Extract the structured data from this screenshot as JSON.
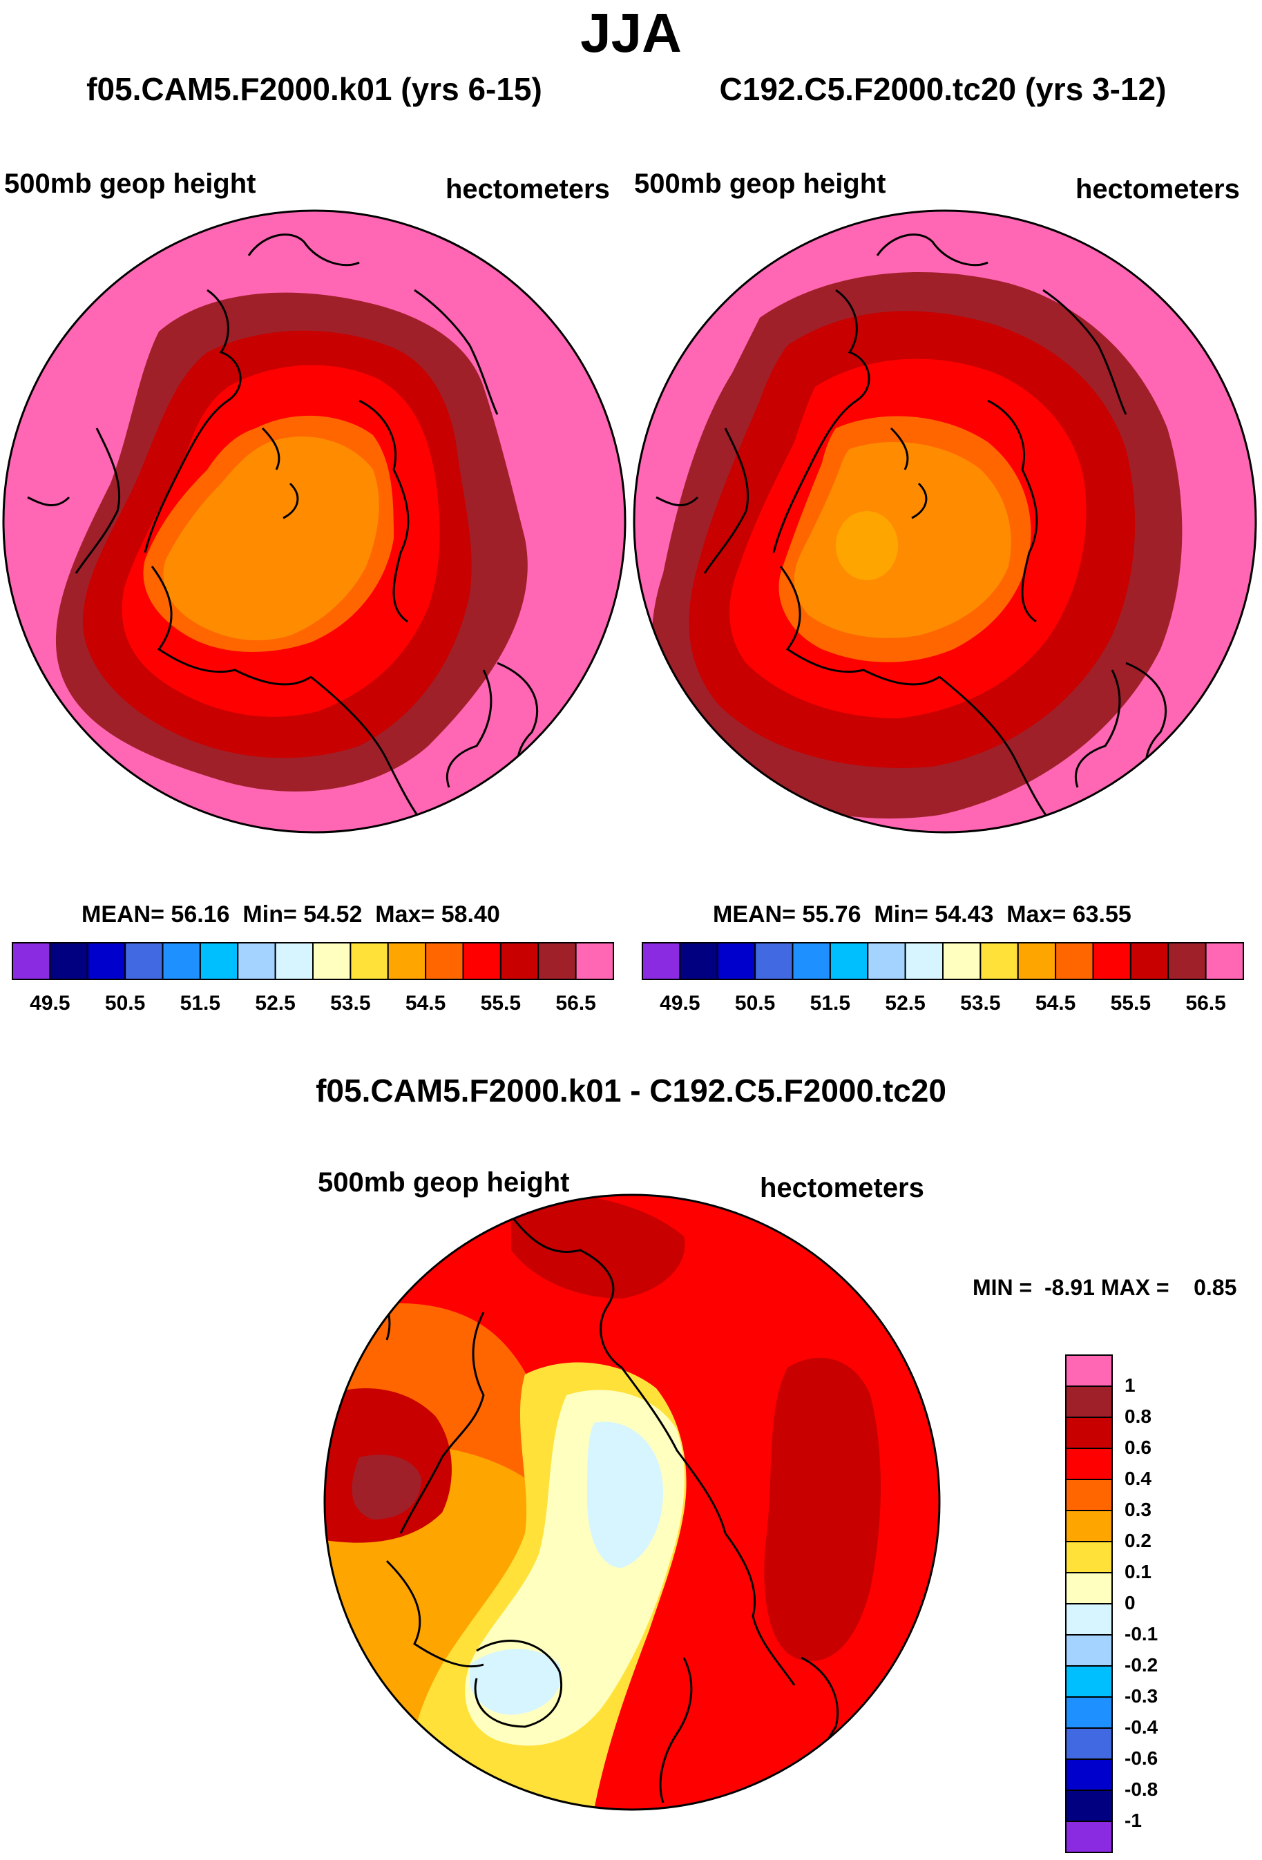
{
  "season": "JJA",
  "left_panel": {
    "title": "f05.CAM5.F2000.k01 (yrs 6-15)",
    "variable": "500mb geop height",
    "units": "hectometers",
    "stats": {
      "mean_label": "MEAN=",
      "mean": "56.16",
      "min_label": "Min=",
      "min": "54.52",
      "max_label": "Max=",
      "max": "58.40"
    }
  },
  "right_panel": {
    "title": "C192.C5.F2000.tc20 (yrs 3-12)",
    "variable": "500mb geop height",
    "units": "hectometers",
    "stats": {
      "mean_label": "MEAN=",
      "mean": "55.76",
      "min_label": "Min=",
      "min": "54.43",
      "max_label": "Max=",
      "max": "63.55"
    }
  },
  "diff_panel": {
    "title": "f05.CAM5.F2000.k01 - C192.C5.F2000.tc20",
    "variable": "500mb geop height",
    "units": "hectometers",
    "minmax": "MIN =  -8.91 MAX =    0.85"
  },
  "chart_data": [
    {
      "type": "heatmap",
      "projection": "north polar stereographic",
      "title": "f05.CAM5.F2000.k01 (yrs 6-15)",
      "variable": "500mb geop height (hectometers)",
      "mean": 56.16,
      "min": 54.52,
      "max": 58.4,
      "colorbar_levels": [
        49.5,
        50.0,
        50.5,
        51.0,
        51.5,
        52.0,
        52.5,
        53.0,
        53.5,
        54.0,
        54.5,
        55.0,
        55.5,
        56.0,
        56.5
      ],
      "colorbar_tick_labels": [
        "49.5",
        "50.5",
        "51.5",
        "52.5",
        "53.5",
        "54.5",
        "55.5",
        "56.5"
      ],
      "colorbar_colors": [
        "#8a2be2",
        "#000080",
        "#0000cd",
        "#4169e1",
        "#1e90ff",
        "#00bfff",
        "#a4d3ff",
        "#d6f5ff",
        "#ffffc0",
        "#ffe13a",
        "#ffa500",
        "#ff6600",
        "#ff0000",
        "#c80000",
        "#a0202a",
        "#ff66b3"
      ]
    },
    {
      "type": "heatmap",
      "projection": "north polar stereographic",
      "title": "C192.C5.F2000.tc20 (yrs 3-12)",
      "variable": "500mb geop height (hectometers)",
      "mean": 55.76,
      "min": 54.43,
      "max": 63.55,
      "colorbar_levels": [
        49.5,
        50.0,
        50.5,
        51.0,
        51.5,
        52.0,
        52.5,
        53.0,
        53.5,
        54.0,
        54.5,
        55.0,
        55.5,
        56.0,
        56.5
      ],
      "colorbar_tick_labels": [
        "49.5",
        "50.5",
        "51.5",
        "52.5",
        "53.5",
        "54.5",
        "55.5",
        "56.5"
      ]
    },
    {
      "type": "heatmap",
      "projection": "north polar stereographic",
      "title": "f05.CAM5.F2000.k01 - C192.C5.F2000.tc20",
      "variable": "500mb geop height difference (hectometers)",
      "min": -8.91,
      "max": 0.85,
      "colorbar_levels": [
        1,
        0.8,
        0.6,
        0.4,
        0.3,
        0.2,
        0.1,
        0,
        -0.1,
        -0.2,
        -0.3,
        -0.4,
        -0.6,
        -0.8,
        -1
      ],
      "colorbar_tick_labels": [
        "1",
        "0.8",
        "0.6",
        "0.4",
        "0.3",
        "0.2",
        "0.1",
        "0",
        "-0.1",
        "-0.2",
        "-0.3",
        "-0.4",
        "-0.6",
        "-0.8",
        "-1"
      ],
      "colorbar_colors": [
        "#ff66b3",
        "#a0202a",
        "#c80000",
        "#ff0000",
        "#ff6600",
        "#ffa500",
        "#ffe13a",
        "#ffffc0",
        "#d6f5ff",
        "#a4d3ff",
        "#00bfff",
        "#1e90ff",
        "#4169e1",
        "#0000cd",
        "#000080",
        "#8a2be2"
      ]
    }
  ]
}
